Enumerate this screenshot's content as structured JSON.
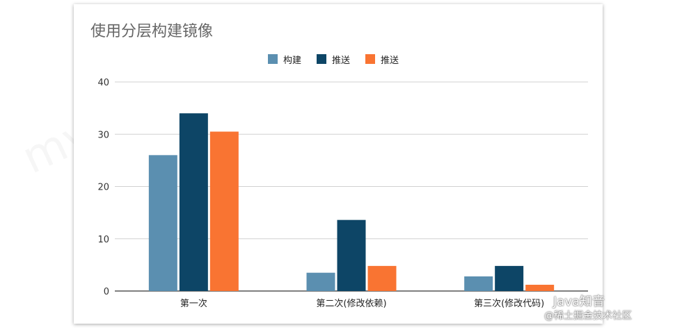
{
  "chart_data": {
    "type": "bar",
    "title": "使用分层构建镜像",
    "categories": [
      "第一次",
      "第二次(修改依赖)",
      "第三次(修改代码)"
    ],
    "series": [
      {
        "name": "构建",
        "color": "#5b8fb0",
        "values": [
          26,
          3.5,
          2.8
        ]
      },
      {
        "name": "推送",
        "color": "#0d4566",
        "values": [
          34,
          13.6,
          4.8
        ]
      },
      {
        "name": "推送",
        "color": "#f97432",
        "values": [
          30.5,
          4.8,
          1.2
        ]
      }
    ],
    "ylim": [
      0,
      40
    ],
    "yticks": [
      0,
      10,
      20,
      30,
      40
    ],
    "grid": true,
    "legend_position": "top"
  },
  "watermark": {
    "logo": "Java知音",
    "source": "@稀土掘金技术社区"
  }
}
